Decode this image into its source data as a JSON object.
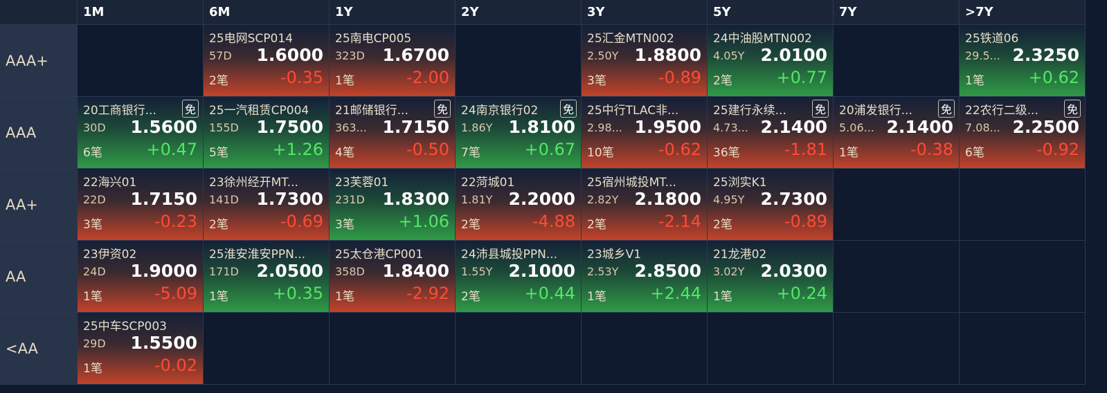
{
  "columns": [
    "1M",
    "6M",
    "1Y",
    "2Y",
    "3Y",
    "5Y",
    "7Y",
    ">7Y"
  ],
  "rows": [
    {
      "label": "AAA+",
      "cells": [
        null,
        {
          "name": "25电网SCP014",
          "term": "57D",
          "yield": "1.6000",
          "count": "2笔",
          "change": "-0.35"
        },
        {
          "name": "25南电CP005",
          "term": "323D",
          "yield": "1.6700",
          "count": "1笔",
          "change": "-2.00"
        },
        null,
        {
          "name": "25汇金MTN002",
          "term": "2.50Y",
          "yield": "1.8800",
          "count": "3笔",
          "change": "-0.89"
        },
        {
          "name": "24中油股MTN002",
          "term": "4.05Y",
          "yield": "2.0100",
          "count": "2笔",
          "change": "+0.77"
        },
        null,
        {
          "name": "25铁道06",
          "term": "29.5...",
          "yield": "2.3250",
          "count": "1笔",
          "change": "+0.62"
        }
      ]
    },
    {
      "label": "AAA",
      "cells": [
        {
          "name": "20工商银行...",
          "tag": "免",
          "term": "30D",
          "yield": "1.5600",
          "count": "6笔",
          "change": "+0.47"
        },
        {
          "name": "25一汽租赁CP004",
          "term": "155D",
          "yield": "1.7500",
          "count": "5笔",
          "change": "+1.26"
        },
        {
          "name": "21邮储银行...",
          "tag": "免",
          "term": "363...",
          "yield": "1.7150",
          "count": "4笔",
          "change": "-0.50"
        },
        {
          "name": "24南京银行02",
          "tag": "免",
          "term": "1.86Y",
          "yield": "1.8100",
          "count": "7笔",
          "change": "+0.67"
        },
        {
          "name": "25中行TLAC非...",
          "term": "2.98...",
          "yield": "1.9500",
          "count": "10笔",
          "change": "-0.62"
        },
        {
          "name": "25建行永续...",
          "tag": "免",
          "term": "4.73...",
          "yield": "2.1400",
          "count": "36笔",
          "change": "-1.81"
        },
        {
          "name": "20浦发银行...",
          "tag": "免",
          "term": "5.06...",
          "yield": "2.1400",
          "count": "1笔",
          "change": "-0.38"
        },
        {
          "name": "22农行二级...",
          "tag": "免",
          "term": "7.08...",
          "yield": "2.2500",
          "count": "6笔",
          "change": "-0.92"
        }
      ]
    },
    {
      "label": "AA+",
      "cells": [
        {
          "name": "22海兴01",
          "term": "22D",
          "yield": "1.7150",
          "count": "3笔",
          "change": "-0.23"
        },
        {
          "name": "23徐州经开MT...",
          "term": "141D",
          "yield": "1.7300",
          "count": "2笔",
          "change": "-0.69"
        },
        {
          "name": "23芙蓉01",
          "term": "231D",
          "yield": "1.8300",
          "count": "3笔",
          "change": "+1.06"
        },
        {
          "name": "22菏城01",
          "term": "1.81Y",
          "yield": "2.2000",
          "count": "2笔",
          "change": "-4.88"
        },
        {
          "name": "25宿州城投MT...",
          "term": "2.82Y",
          "yield": "2.1800",
          "count": "2笔",
          "change": "-2.14"
        },
        {
          "name": "25浏实K1",
          "term": "4.95Y",
          "yield": "2.7300",
          "count": "2笔",
          "change": "-0.89"
        },
        null,
        null
      ]
    },
    {
      "label": "AA",
      "cells": [
        {
          "name": "23伊资02",
          "term": "24D",
          "yield": "1.9000",
          "count": "1笔",
          "change": "-5.09"
        },
        {
          "name": "25淮安淮安PPN...",
          "term": "171D",
          "yield": "2.0500",
          "count": "1笔",
          "change": "+0.35"
        },
        {
          "name": "25太仓港CP001",
          "term": "358D",
          "yield": "1.8400",
          "count": "1笔",
          "change": "-2.92"
        },
        {
          "name": "24沛县城投PPN...",
          "term": "1.55Y",
          "yield": "2.1000",
          "count": "2笔",
          "change": "+0.44"
        },
        {
          "name": "23城乡V1",
          "term": "2.53Y",
          "yield": "2.8500",
          "count": "1笔",
          "change": "+2.44"
        },
        {
          "name": "21龙港02",
          "term": "3.02Y",
          "yield": "2.0300",
          "count": "1笔",
          "change": "+0.24"
        },
        null,
        null
      ]
    },
    {
      "label": "<AA",
      "cells": [
        {
          "name": "25中车SCP003",
          "term": "29D",
          "yield": "1.5500",
          "count": "1笔",
          "change": "-0.02"
        },
        null,
        null,
        null,
        null,
        null,
        null,
        null
      ]
    }
  ]
}
